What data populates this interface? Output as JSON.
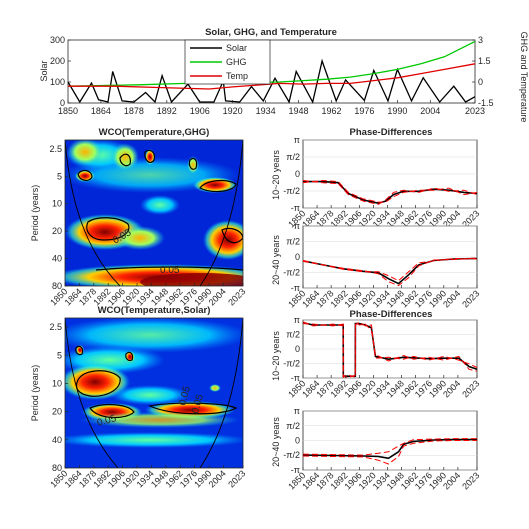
{
  "chart_data": [
    {
      "id": "top",
      "type": "line",
      "title": "Solar, GHG, and Temperature",
      "ylabel_left": "Solar",
      "ylabel_right": "GHG and Temperature",
      "xlim": [
        1850,
        2023
      ],
      "ylim_left": [
        0,
        300
      ],
      "ylim_right": [
        -1.5,
        3
      ],
      "xticks": [
        "1850",
        "1864",
        "1878",
        "1892",
        "1906",
        "1920",
        "1934",
        "1948",
        "1962",
        "1976",
        "1990",
        "2004",
        "2023"
      ],
      "yticks_left": [
        "0",
        "100",
        "200",
        "300"
      ],
      "yticks_right": [
        "-1.5",
        "0",
        "1.5",
        "3"
      ],
      "legend": {
        "location": "top-center",
        "entries": [
          "Solar",
          "GHG",
          "Temp"
        ]
      },
      "series": [
        {
          "name": "Solar",
          "color": "#000000",
          "axis": "left",
          "x": [
            1850,
            1855,
            1860,
            1863,
            1867,
            1869,
            1873,
            1878,
            1883,
            1887,
            1890,
            1894,
            1901,
            1906,
            1912,
            1916,
            1917,
            1923,
            1928,
            1933,
            1938,
            1944,
            1947,
            1954,
            1958,
            1964,
            1968,
            1976,
            1980,
            1986,
            1990,
            1996,
            2001,
            2008,
            2014,
            2019,
            2023
          ],
          "y": [
            100,
            5,
            95,
            15,
            5,
            150,
            10,
            5,
            50,
            5,
            130,
            5,
            90,
            5,
            5,
            105,
            10,
            5,
            78,
            10,
            118,
            5,
            150,
            5,
            200,
            10,
            110,
            12,
            155,
            10,
            160,
            10,
            120,
            5,
            80,
            5,
            30
          ]
        },
        {
          "name": "GHG",
          "color": "#00c800",
          "axis": "right",
          "x": [
            1850,
            1880,
            1900,
            1920,
            1940,
            1950,
            1960,
            1970,
            1980,
            1990,
            2000,
            2010,
            2023
          ],
          "y": [
            -0.3,
            -0.2,
            -0.1,
            -0.05,
            0.0,
            0.1,
            0.2,
            0.35,
            0.6,
            0.9,
            1.3,
            1.8,
            2.9
          ]
        },
        {
          "name": "Temp",
          "color": "#e00000",
          "axis": "right",
          "x": [
            1850,
            1870,
            1890,
            1910,
            1920,
            1940,
            1950,
            1960,
            1970,
            1980,
            1990,
            2000,
            2010,
            2023
          ],
          "y": [
            -0.3,
            -0.3,
            -0.4,
            -0.5,
            -0.35,
            -0.1,
            -0.15,
            -0.1,
            -0.1,
            0.1,
            0.3,
            0.6,
            0.9,
            1.3
          ]
        }
      ]
    },
    {
      "id": "wco1",
      "type": "heatmap",
      "title": "WCO(Temperature,GHG)",
      "ylabel": "Period (years)",
      "xlim": [
        1850,
        2023
      ],
      "ylim": [
        2,
        80
      ],
      "yscale": "log",
      "xticks": [
        "1850",
        "1864",
        "1878",
        "1892",
        "1906",
        "1920",
        "1934",
        "1948",
        "1962",
        "1976",
        "1990",
        "2004",
        "2023"
      ],
      "yticks": [
        "2.5",
        "5",
        "10",
        "20",
        "40",
        "80"
      ],
      "contour_labels": [
        "0.05",
        "0.05"
      ]
    },
    {
      "id": "wco2",
      "type": "heatmap",
      "title": "WCO(Temperature,Solar)",
      "ylabel": "Period (years)",
      "xlim": [
        1850,
        2023
      ],
      "ylim": [
        2,
        80
      ],
      "yscale": "log",
      "xticks": [
        "1850",
        "1864",
        "1878",
        "1892",
        "1906",
        "1920",
        "1934",
        "1948",
        "1962",
        "1976",
        "1990",
        "2004",
        "2023"
      ],
      "yticks": [
        "2.5",
        "5",
        "10",
        "20",
        "40",
        "80"
      ],
      "contour_labels": [
        "0.05",
        "0.05",
        "0.05"
      ]
    },
    {
      "id": "ph1",
      "type": "line",
      "title": "Phase-Differences",
      "ylabel": "10~20 years",
      "xlim": [
        1850,
        2023
      ],
      "ylim": [
        -3.1416,
        3.1416
      ],
      "xticks": [
        "1850",
        "1864",
        "1878",
        "1892",
        "1906",
        "1920",
        "1934",
        "1948",
        "1962",
        "1976",
        "1990",
        "2004",
        "2023"
      ],
      "yticks": [
        "π",
        "π/2",
        "0",
        "-π/2",
        "-π"
      ],
      "series": [
        {
          "name": "",
          "color": "#000000",
          "x": [
            1850,
            1870,
            1885,
            1895,
            1910,
            1925,
            1932,
            1940,
            1950,
            1965,
            1980,
            1995,
            2010,
            2023
          ],
          "y": [
            -0.7,
            -0.7,
            -0.8,
            -1.8,
            -2.4,
            -2.7,
            -2.5,
            -1.9,
            -1.6,
            -1.6,
            -1.4,
            -1.5,
            -1.7,
            -1.8
          ]
        },
        {
          "name": "",
          "color": "#ff0000",
          "x": [
            1850,
            1870,
            1885,
            1895,
            1910,
            1925,
            1932,
            1940,
            1950,
            1965,
            1980,
            1995,
            2010,
            2023
          ],
          "y": [
            -0.6,
            -0.8,
            -0.9,
            -1.9,
            -2.5,
            -2.8,
            -2.4,
            -1.7,
            -1.5,
            -1.7,
            -1.3,
            -1.6,
            -1.5,
            -1.9
          ]
        },
        {
          "name": "",
          "color": "#ff0000",
          "x": [
            1850,
            1870,
            1885,
            1895,
            1910,
            1925,
            1932,
            1940,
            1950,
            1965,
            1980,
            1995,
            2010,
            2023
          ],
          "y": [
            -0.8,
            -0.6,
            -0.7,
            -1.7,
            -2.3,
            -2.6,
            -2.6,
            -2.1,
            -1.7,
            -1.5,
            -1.5,
            -1.3,
            -1.9,
            -1.7
          ]
        }
      ]
    },
    {
      "id": "ph2",
      "type": "line",
      "title": "",
      "ylabel": "20~40 years",
      "xlim": [
        1850,
        2023
      ],
      "ylim": [
        -3.1416,
        3.1416
      ],
      "xticks": [
        "1850",
        "1864",
        "1878",
        "1892",
        "1906",
        "1920",
        "1934",
        "1948",
        "1962",
        "1976",
        "1990",
        "2004",
        "2023"
      ],
      "yticks": [
        "π",
        "π/2",
        "0",
        "-π/2",
        "-π"
      ],
      "series": [
        {
          "name": "",
          "color": "#000000",
          "x": [
            1850,
            1870,
            1890,
            1910,
            1925,
            1935,
            1945,
            1955,
            1965,
            1980,
            2000,
            2023
          ],
          "y": [
            -0.4,
            -0.8,
            -1.2,
            -1.45,
            -1.6,
            -2.2,
            -2.7,
            -1.8,
            -0.8,
            -0.35,
            -0.2,
            -0.15
          ]
        },
        {
          "name": "",
          "color": "#ff0000",
          "x": [
            1850,
            1870,
            1890,
            1910,
            1925,
            1935,
            1945,
            1955,
            1965,
            1980,
            2000,
            2023
          ],
          "y": [
            -0.35,
            -0.8,
            -1.15,
            -1.4,
            -1.7,
            -2.5,
            -2.9,
            -2.1,
            -0.9,
            -0.3,
            -0.25,
            -0.1
          ]
        },
        {
          "name": "",
          "color": "#ff0000",
          "x": [
            1850,
            1870,
            1890,
            1910,
            1925,
            1935,
            1945,
            1955,
            1965,
            1980,
            2000,
            2023
          ],
          "y": [
            -0.45,
            -0.8,
            -1.25,
            -1.5,
            -1.5,
            -1.9,
            -2.4,
            -1.5,
            -0.6,
            -0.4,
            -0.15,
            -0.2
          ]
        }
      ]
    },
    {
      "id": "ph3",
      "type": "line",
      "title": "Phase-Differences",
      "ylabel": "10~20 years",
      "xlim": [
        1850,
        2023
      ],
      "ylim": [
        -3.1416,
        3.1416
      ],
      "xticks": [
        "1850",
        "1864",
        "1878",
        "1892",
        "1906",
        "1920",
        "1934",
        "1948",
        "1962",
        "1976",
        "1990",
        "2004",
        "2023"
      ],
      "yticks": [
        "π",
        "π/2",
        "0",
        "-π/2",
        "-π"
      ],
      "series": [
        {
          "name": "",
          "color": "#000000",
          "x": [
            1850,
            1860,
            1880,
            1890,
            1890.1,
            1894,
            1902,
            1902.1,
            1906,
            1912,
            1918,
            1922,
            1935,
            1950,
            1960,
            1975,
            1990,
            2005,
            2015,
            2023
          ],
          "y": [
            2.85,
            2.6,
            2.6,
            2.6,
            -2.95,
            -2.95,
            -2.95,
            2.75,
            2.75,
            2.6,
            2.3,
            -0.8,
            -1.1,
            -0.9,
            -0.95,
            -1.05,
            -1.0,
            -1.0,
            -1.9,
            -2.2
          ]
        },
        {
          "name": "",
          "color": "#ff0000",
          "x": [
            1850,
            1860,
            1880,
            1890,
            1890.1,
            1894,
            1902,
            1902.1,
            1906,
            1912,
            1918,
            1922,
            1935,
            1950,
            1960,
            1975,
            1990,
            2005,
            2015,
            2023
          ],
          "y": [
            2.95,
            2.5,
            2.7,
            2.5,
            -3.05,
            -2.8,
            -3.05,
            2.9,
            2.6,
            2.7,
            2.0,
            -0.6,
            -1.3,
            -0.7,
            -1.1,
            -0.9,
            -1.2,
            -0.8,
            -2.2,
            -2.4
          ]
        },
        {
          "name": "",
          "color": "#ff0000",
          "x": [
            1850,
            1860,
            1880,
            1890,
            1890.1,
            1894,
            1902,
            1902.1,
            1906,
            1912,
            1918,
            1922,
            1935,
            1950,
            1960,
            1975,
            1990,
            2005,
            2015,
            2023
          ],
          "y": [
            2.75,
            2.7,
            2.5,
            2.7,
            -2.85,
            -3.1,
            -2.85,
            2.6,
            2.9,
            2.5,
            2.6,
            -1.0,
            -0.9,
            -1.1,
            -0.8,
            -1.2,
            -0.8,
            -1.2,
            -1.6,
            -2.0
          ]
        }
      ]
    },
    {
      "id": "ph4",
      "type": "line",
      "title": "",
      "ylabel": "20~40 years",
      "xlim": [
        1850,
        2023
      ],
      "ylim": [
        -3.1416,
        3.1416
      ],
      "xticks": [
        "1850",
        "1864",
        "1878",
        "1892",
        "1906",
        "1920",
        "1934",
        "1948",
        "1962",
        "1976",
        "1990",
        "2004",
        "2023"
      ],
      "yticks": [
        "π",
        "π/2",
        "0",
        "-π/2",
        "-π"
      ],
      "series": [
        {
          "name": "",
          "color": "#000000",
          "x": [
            1850,
            1880,
            1910,
            1925,
            1935,
            1945,
            1950,
            1960,
            1980,
            2000,
            2023
          ],
          "y": [
            -1.55,
            -1.6,
            -1.65,
            -1.7,
            -1.9,
            -1.2,
            -0.4,
            -0.1,
            0.05,
            0.1,
            0.1
          ]
        },
        {
          "name": "",
          "color": "#ff0000",
          "x": [
            1850,
            1880,
            1910,
            1925,
            1935,
            1945,
            1950,
            1960,
            1980,
            2000,
            2023
          ],
          "y": [
            -1.45,
            -1.5,
            -1.55,
            -1.35,
            -1.2,
            -0.6,
            -0.3,
            0.1,
            0.15,
            0.2,
            0.2
          ]
        },
        {
          "name": "",
          "color": "#ff0000",
          "x": [
            1850,
            1880,
            1910,
            1925,
            1935,
            1945,
            1950,
            1960,
            1980,
            2000,
            2023
          ],
          "y": [
            -1.65,
            -1.7,
            -1.75,
            -2.1,
            -2.5,
            -1.7,
            -0.6,
            -0.3,
            -0.05,
            0.0,
            0.0
          ]
        }
      ]
    }
  ]
}
